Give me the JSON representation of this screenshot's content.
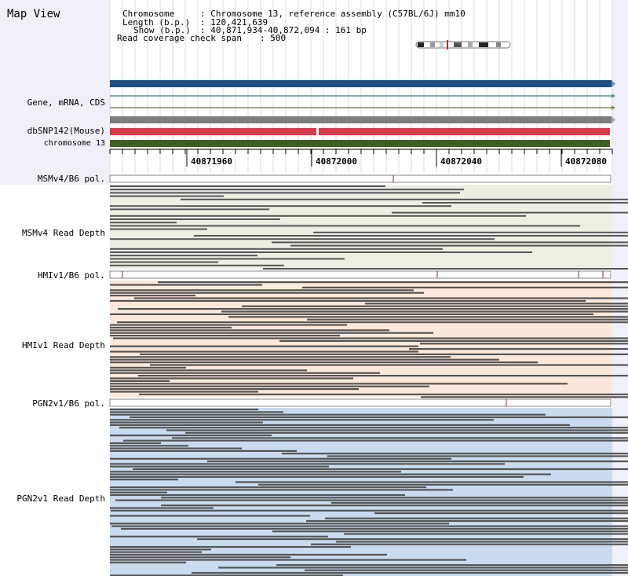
{
  "panel_title": "Map View",
  "info": {
    "chromosome_key": "Chromosome",
    "chromosome_value": ": Chromosome 13, reference assembly (C57BL/6J) mm10",
    "length_key": "Length (b.p.)",
    "length_value": ": 120,421,639",
    "show_key": "Show (b.p.)",
    "show_value": ": 40,871,934-40,872,094 : 161 bp",
    "span_key": "Read coverage check span",
    "span_value": ": 500"
  },
  "tracks": {
    "gene": "Gene, mRNA, CDS",
    "dbsnp": "dbSNP142(Mouse)",
    "chromosome": "chromosome 13",
    "msm_pol": "MSMv4/B6 pol.",
    "msm_depth": "MSMv4 Read Depth",
    "hmi_pol": "HMIv1/B6 pol.",
    "hmi_depth": "HMIv1 Read Depth",
    "pgn_pol": "PGN2v1/B6 pol.",
    "pgn_depth": "PGN2v1 Read Depth"
  },
  "ruler": {
    "ticks": [
      "40871960",
      "40872000",
      "40872040",
      "40872080"
    ]
  },
  "colors": {
    "gene_bar": "#1f4e80",
    "dbsnp_bar": "#d63b4b",
    "chrom_bar": "#3f5e26",
    "msm_bg": "#edefe2",
    "hmi_bg": "#fbe8da",
    "pgn_bg": "#c9dbef",
    "side_panel": "#f0f0fa",
    "read": "#555555"
  }
}
